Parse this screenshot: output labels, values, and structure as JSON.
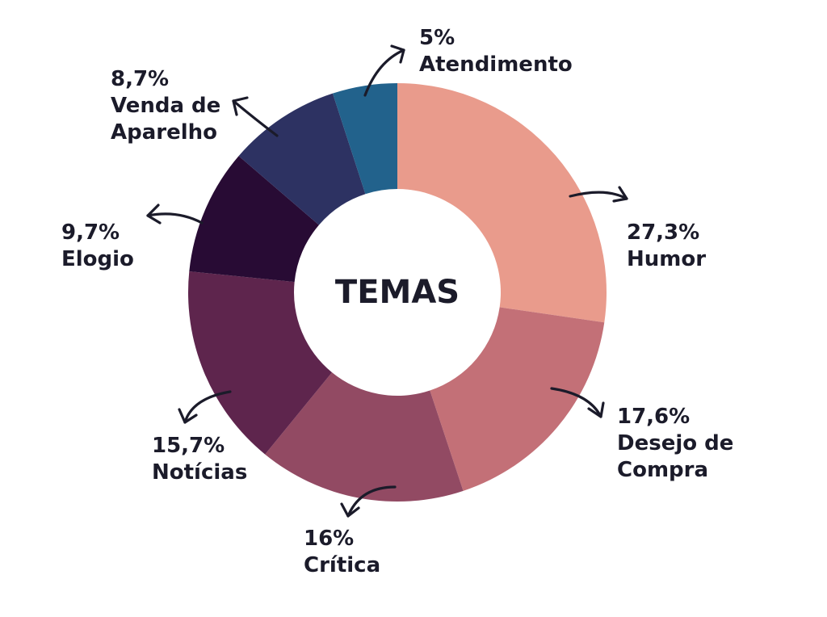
{
  "chart_data": {
    "type": "donut",
    "title": "TEMAS",
    "slices": [
      {
        "name": "Humor",
        "value": 27.3,
        "value_label": "27,3%",
        "label_lines": [
          "Humor"
        ],
        "color": "#E99B8C"
      },
      {
        "name": "Desejo de Compra",
        "value": 17.6,
        "value_label": "17,6%",
        "label_lines": [
          "Desejo de",
          "Compra"
        ],
        "color": "#C37077"
      },
      {
        "name": "Crítica",
        "value": 16,
        "value_label": "16%",
        "label_lines": [
          "Crítica"
        ],
        "color": "#924A63"
      },
      {
        "name": "Notícias",
        "value": 15.7,
        "value_label": "15,7%",
        "label_lines": [
          "Notícias"
        ],
        "color": "#5E254D"
      },
      {
        "name": "Elogio",
        "value": 9.7,
        "value_label": "9,7%",
        "label_lines": [
          "Elogio"
        ],
        "color": "#280B34"
      },
      {
        "name": "Venda de Aparelho",
        "value": 8.7,
        "value_label": "8,7%",
        "label_lines": [
          "Venda de",
          "Aparelho"
        ],
        "color": "#2D3262"
      },
      {
        "name": "Atendimento",
        "value": 5,
        "value_label": "5%",
        "label_lines": [
          "Atendimento"
        ],
        "color": "#22628C"
      }
    ],
    "start": "12 o'clock",
    "direction": "clockwise",
    "legend": "none"
  }
}
